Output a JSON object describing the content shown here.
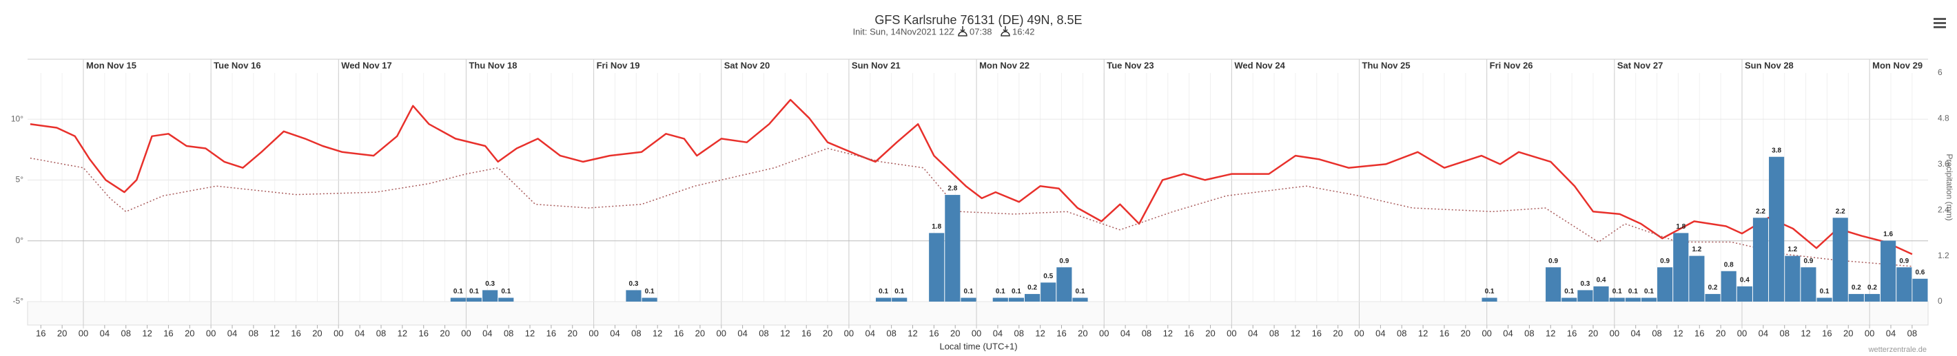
{
  "chart_data": {
    "type": "meteogram",
    "title": "GFS Karlsruhe 76131 (DE) 49N, 8.5E",
    "subtitle": "Init: Sun, 14Nov2021 12Z",
    "sunrise": "07:38",
    "sunset": "16:42",
    "x_label": "Local time (UTC+1)",
    "y2_label": "Precipitation (mm)",
    "credit": "wetterzentrale.de",
    "grid": true,
    "xlim": [
      -10.5,
      347
    ],
    "days": [
      {
        "value": 0,
        "label": "Mon Nov 15"
      },
      {
        "value": 24,
        "label": "Tue Nov 16"
      },
      {
        "value": 48,
        "label": "Wed Nov 17"
      },
      {
        "value": 72,
        "label": "Thu Nov 18"
      },
      {
        "value": 96,
        "label": "Fri Nov 19"
      },
      {
        "value": 120,
        "label": "Sat Nov 20"
      },
      {
        "value": 144,
        "label": "Sun Nov 21"
      },
      {
        "value": 168,
        "label": "Mon Nov 22"
      },
      {
        "value": 192,
        "label": "Tue Nov 23"
      },
      {
        "value": 216,
        "label": "Wed Nov 24"
      },
      {
        "value": 240,
        "label": "Thu Nov 25"
      },
      {
        "value": 264,
        "label": "Fri Nov 26"
      },
      {
        "value": 288,
        "label": "Sat Nov 27"
      },
      {
        "value": 312,
        "label": "Sun Nov 28"
      },
      {
        "value": 336,
        "label": "Mon Nov 29"
      }
    ],
    "xticks": [
      {
        "value": -8,
        "label": "16"
      },
      {
        "value": -4,
        "label": "20"
      },
      {
        "value": 0,
        "label": "00"
      },
      {
        "value": 4,
        "label": "04"
      },
      {
        "value": 8,
        "label": "08"
      },
      {
        "value": 12,
        "label": "12"
      },
      {
        "value": 16,
        "label": "16"
      },
      {
        "value": 20,
        "label": "20"
      },
      {
        "value": 24,
        "label": "00"
      },
      {
        "value": 28,
        "label": "04"
      },
      {
        "value": 32,
        "label": "08"
      },
      {
        "value": 36,
        "label": "12"
      },
      {
        "value": 40,
        "label": "16"
      },
      {
        "value": 44,
        "label": "20"
      },
      {
        "value": 48,
        "label": "00"
      },
      {
        "value": 52,
        "label": "04"
      },
      {
        "value": 56,
        "label": "08"
      },
      {
        "value": 60,
        "label": "12"
      },
      {
        "value": 64,
        "label": "16"
      },
      {
        "value": 68,
        "label": "20"
      },
      {
        "value": 72,
        "label": "00"
      },
      {
        "value": 76,
        "label": "04"
      },
      {
        "value": 80,
        "label": "08"
      },
      {
        "value": 84,
        "label": "12"
      },
      {
        "value": 88,
        "label": "16"
      },
      {
        "value": 92,
        "label": "20"
      },
      {
        "value": 96,
        "label": "00"
      },
      {
        "value": 100,
        "label": "04"
      },
      {
        "value": 104,
        "label": "08"
      },
      {
        "value": 108,
        "label": "12"
      },
      {
        "value": 112,
        "label": "16"
      },
      {
        "value": 116,
        "label": "20"
      },
      {
        "value": 120,
        "label": "00"
      },
      {
        "value": 124,
        "label": "04"
      },
      {
        "value": 128,
        "label": "08"
      },
      {
        "value": 132,
        "label": "12"
      },
      {
        "value": 136,
        "label": "16"
      },
      {
        "value": 140,
        "label": "20"
      },
      {
        "value": 144,
        "label": "00"
      },
      {
        "value": 148,
        "label": "04"
      },
      {
        "value": 152,
        "label": "08"
      },
      {
        "value": 156,
        "label": "12"
      },
      {
        "value": 160,
        "label": "16"
      },
      {
        "value": 164,
        "label": "20"
      },
      {
        "value": 168,
        "label": "00"
      },
      {
        "value": 172,
        "label": "04"
      },
      {
        "value": 176,
        "label": "08"
      },
      {
        "value": 180,
        "label": "12"
      },
      {
        "value": 184,
        "label": "16"
      },
      {
        "value": 188,
        "label": "20"
      },
      {
        "value": 192,
        "label": "00"
      },
      {
        "value": 196,
        "label": "04"
      },
      {
        "value": 200,
        "label": "08"
      },
      {
        "value": 204,
        "label": "12"
      },
      {
        "value": 208,
        "label": "16"
      },
      {
        "value": 212,
        "label": "20"
      },
      {
        "value": 216,
        "label": "00"
      },
      {
        "value": 220,
        "label": "04"
      },
      {
        "value": 224,
        "label": "08"
      },
      {
        "value": 228,
        "label": "12"
      },
      {
        "value": 232,
        "label": "16"
      },
      {
        "value": 236,
        "label": "20"
      },
      {
        "value": 240,
        "label": "00"
      },
      {
        "value": 244,
        "label": "04"
      },
      {
        "value": 248,
        "label": "08"
      },
      {
        "value": 252,
        "label": "12"
      },
      {
        "value": 256,
        "label": "16"
      },
      {
        "value": 260,
        "label": "20"
      },
      {
        "value": 264,
        "label": "00"
      },
      {
        "value": 268,
        "label": "04"
      },
      {
        "value": 272,
        "label": "08"
      },
      {
        "value": 276,
        "label": "12"
      },
      {
        "value": 280,
        "label": "16"
      },
      {
        "value": 284,
        "label": "20"
      },
      {
        "value": 288,
        "label": "00"
      },
      {
        "value": 292,
        "label": "04"
      },
      {
        "value": 296,
        "label": "08"
      },
      {
        "value": 300,
        "label": "12"
      },
      {
        "value": 304,
        "label": "16"
      },
      {
        "value": 308,
        "label": "20"
      },
      {
        "value": 312,
        "label": "00"
      },
      {
        "value": 316,
        "label": "04"
      },
      {
        "value": 320,
        "label": "08"
      },
      {
        "value": 324,
        "label": "12"
      },
      {
        "value": 328,
        "label": "16"
      },
      {
        "value": 332,
        "label": "20"
      },
      {
        "value": 336,
        "label": "00"
      },
      {
        "value": 340,
        "label": "04"
      },
      {
        "value": 344,
        "label": "08"
      }
    ],
    "ylim": [
      -5,
      13.8
    ],
    "yticks": [
      {
        "value": -5,
        "label": "-5°"
      },
      {
        "value": 0,
        "label": "0°"
      },
      {
        "value": 5,
        "label": "5°"
      },
      {
        "value": 10,
        "label": "10°"
      }
    ],
    "y2lim": [
      0,
      6
    ],
    "y2ticks": [
      0,
      1.2,
      2.4,
      3.6,
      4.8,
      6
    ],
    "series": [
      {
        "type": "line",
        "color": "#e8302b",
        "x": [
          -10,
          -5,
          -1.6,
          1.2,
          4.2,
          7.7,
          10,
          12.9,
          16,
          19.4,
          23,
          26.5,
          30,
          33.5,
          37.7,
          41.7,
          45,
          48.7,
          54.6,
          59,
          62,
          65,
          70,
          75.6,
          78,
          81.5,
          85.5,
          89.7,
          94,
          99,
          105,
          109.6,
          113,
          115.4,
          120,
          124.8,
          129,
          133,
          136.5,
          140,
          146,
          149,
          153,
          157,
          160,
          166,
          169,
          171.6,
          176,
          180,
          183.5,
          187,
          191.5,
          195,
          198.6,
          203,
          207,
          211,
          216,
          223,
          228,
          232.5,
          238,
          245,
          251,
          256,
          263,
          266.5,
          270,
          276,
          280.5,
          284,
          289,
          293,
          297,
          303,
          309,
          312,
          317,
          321.6,
          326,
          330,
          334.5,
          339,
          344
        ],
        "values": [
          9.6,
          9.3,
          8.6,
          6.7,
          5.0,
          4.0,
          5.0,
          8.6,
          8.8,
          7.8,
          7.6,
          6.5,
          6.0,
          7.3,
          9.0,
          8.4,
          7.8,
          7.3,
          7.0,
          8.6,
          11.1,
          9.6,
          8.4,
          7.8,
          6.5,
          7.6,
          8.4,
          7.0,
          6.5,
          7.0,
          7.3,
          8.8,
          8.4,
          7.0,
          8.4,
          8.1,
          9.6,
          11.6,
          10.1,
          8.1,
          7.0,
          6.5,
          8.1,
          9.6,
          7.0,
          4.5,
          3.5,
          4.0,
          3.2,
          4.5,
          4.3,
          2.7,
          1.6,
          3.0,
          1.4,
          5.0,
          5.5,
          5.0,
          5.5,
          5.5,
          7.0,
          6.7,
          6.0,
          6.3,
          7.3,
          6.0,
          7.0,
          6.3,
          7.3,
          6.5,
          4.5,
          2.4,
          2.2,
          1.4,
          0.2,
          1.6,
          1.2,
          0.6,
          1.9,
          1.0,
          -0.6,
          1.0,
          0.4,
          -0.1,
          -1.1
        ]
      },
      {
        "type": "line",
        "color": "#a85a5a",
        "dashed": true,
        "x": [
          -10,
          0,
          5,
          8,
          15,
          25,
          40,
          55,
          65,
          72,
          78,
          85,
          95,
          105,
          115,
          130,
          140,
          150,
          158,
          165,
          175,
          185,
          195,
          205,
          215,
          230,
          240,
          250,
          265,
          275,
          285,
          290,
          300,
          310,
          320,
          330,
          344
        ],
        "values": [
          6.8,
          6.0,
          3.5,
          2.4,
          3.7,
          4.5,
          3.8,
          4.0,
          4.7,
          5.5,
          6.0,
          3.0,
          2.7,
          3.0,
          4.5,
          6.0,
          7.6,
          6.5,
          6.0,
          2.4,
          2.2,
          2.4,
          0.9,
          2.4,
          3.7,
          4.5,
          3.7,
          2.7,
          2.4,
          2.7,
          -0.1,
          1.4,
          -0.1,
          -0.1,
          -1.1,
          -1.6,
          -2.1
        ]
      },
      {
        "type": "bar",
        "axis": "y2",
        "color": "#4682b4",
        "x": [
          70.5,
          73.5,
          76.5,
          79.5,
          103.5,
          106.5,
          150.5,
          153.5,
          160.5,
          163.5,
          166.5,
          172.5,
          175.5,
          178.5,
          181.5,
          184.5,
          187.5,
          264.5,
          276.5,
          279.5,
          282.5,
          285.5,
          288.5,
          291.5,
          294.5,
          297.5,
          300.5,
          303.5,
          306.5,
          309.5,
          312.5,
          315.5,
          318.5,
          321.5,
          324.5,
          327.5,
          330.5,
          333.5,
          336.5,
          339.5,
          342.5,
          345.5
        ],
        "values": [
          0.1,
          0.1,
          0.3,
          0.1,
          0.3,
          0.1,
          0.1,
          0.1,
          1.8,
          2.8,
          0.1,
          0.1,
          0.1,
          0.2,
          0.5,
          0.9,
          0.1,
          0.1,
          0.9,
          0.1,
          0.3,
          0.4,
          0.1,
          0.1,
          0.1,
          0.9,
          1.8,
          1.2,
          0.2,
          0.8,
          0.4,
          2.2,
          3.8,
          1.2,
          0.9,
          0.1,
          2.2,
          0.2,
          0.2,
          1.6,
          0.9,
          0.6
        ]
      }
    ]
  }
}
